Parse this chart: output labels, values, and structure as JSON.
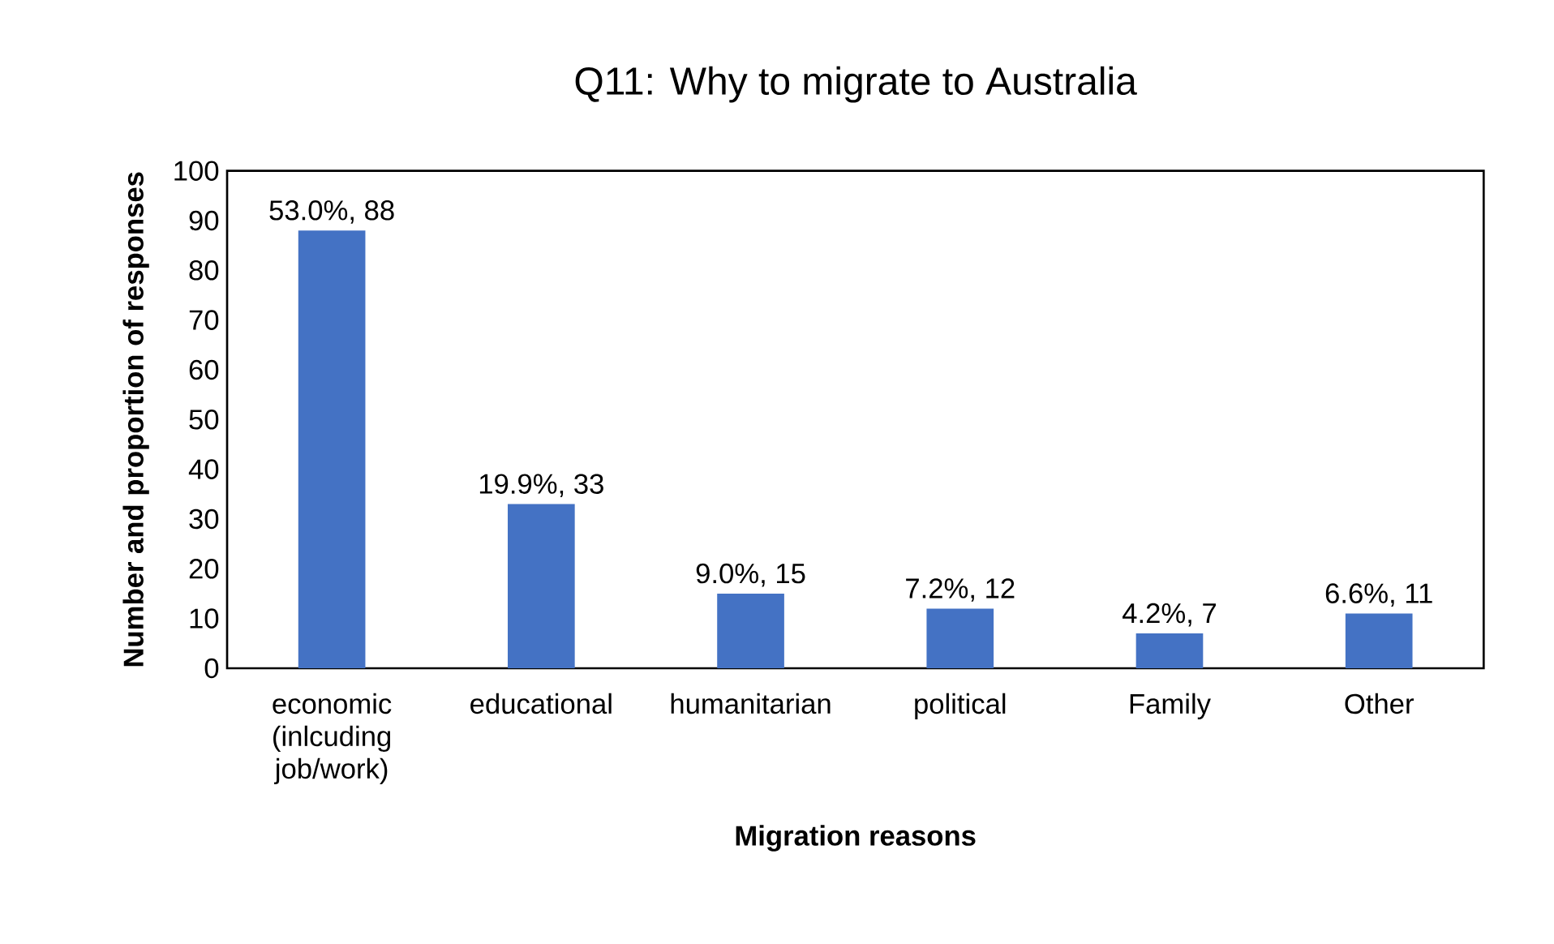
{
  "chart_data": {
    "type": "bar",
    "title": "Q11: Why to migrate to Australia",
    "xlabel": "Migration reasons",
    "ylabel": "Number and proportion of responses",
    "categories": [
      "economic (inlcuding job/work)",
      "educational",
      "humanitarian",
      "political",
      "Family",
      "Other"
    ],
    "values": [
      88,
      33,
      15,
      12,
      7,
      11
    ],
    "value_labels": [
      "53.0%, 88",
      "19.9%, 33",
      "9.0%, 15",
      "7.2%, 12",
      "4.2%, 7",
      "6.6%, 11"
    ],
    "color": "#4472c4",
    "ylim": [
      0,
      100
    ],
    "yticks": [
      0,
      10,
      20,
      30,
      40,
      50,
      60,
      70,
      80,
      90,
      100
    ]
  }
}
